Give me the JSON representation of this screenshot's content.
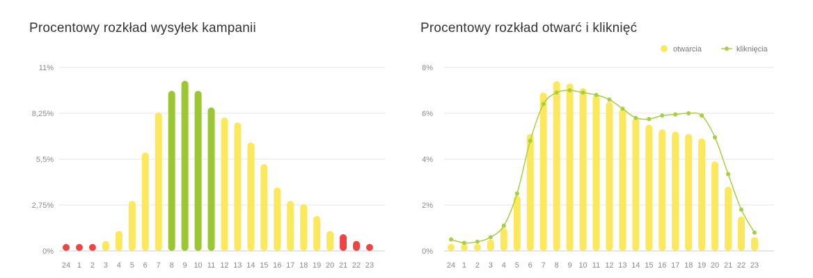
{
  "colors": {
    "yellow": "#fbe85d",
    "green": "#9bc832",
    "red": "#ee4444",
    "line": "#a5cf3c",
    "grid": "#e4e4e4",
    "axis": "#cccccc"
  },
  "chart_data": [
    {
      "type": "bar",
      "title": "Procentowy rozkład wysyłek kampanii",
      "xlabel": "",
      "ylabel": "",
      "categories": [
        "24",
        "1",
        "2",
        "3",
        "4",
        "5",
        "6",
        "7",
        "8",
        "9",
        "10",
        "11",
        "12",
        "13",
        "14",
        "15",
        "16",
        "17",
        "18",
        "19",
        "20",
        "21",
        "22",
        "23"
      ],
      "values": [
        0.2,
        0.3,
        0.4,
        0.6,
        1.2,
        3.0,
        5.9,
        8.3,
        9.6,
        10.2,
        9.6,
        8.6,
        8.0,
        7.7,
        6.5,
        5.2,
        3.8,
        3.0,
        2.8,
        2.1,
        1.2,
        1.0,
        0.6,
        0.3
      ],
      "bar_colors": [
        "red",
        "red",
        "red",
        "yellow",
        "yellow",
        "yellow",
        "yellow",
        "yellow",
        "green",
        "green",
        "green",
        "green",
        "yellow",
        "yellow",
        "yellow",
        "yellow",
        "yellow",
        "yellow",
        "yellow",
        "yellow",
        "yellow",
        "red",
        "red",
        "red"
      ],
      "yticks": [
        "0%",
        "2,75%",
        "5,5%",
        "8,25%",
        "11%"
      ],
      "ylim": [
        0,
        11
      ],
      "grid": true
    },
    {
      "type": "bar",
      "title": "Procentowy rozkład otwarć i kliknięć",
      "xlabel": "",
      "ylabel": "",
      "categories": [
        "24",
        "1",
        "2",
        "3",
        "4",
        "5",
        "6",
        "7",
        "8",
        "9",
        "10",
        "11",
        "12",
        "13",
        "14",
        "15",
        "16",
        "17",
        "18",
        "19",
        "20",
        "21",
        "22",
        "23"
      ],
      "series": [
        {
          "name": "otwarcia",
          "type": "bar",
          "values": [
            0.3,
            0.2,
            0.3,
            0.5,
            1.0,
            2.4,
            5.1,
            6.9,
            7.4,
            7.3,
            7.1,
            6.8,
            6.5,
            6.2,
            5.8,
            5.5,
            5.3,
            5.2,
            5.1,
            4.9,
            3.9,
            2.8,
            1.5,
            0.6
          ]
        },
        {
          "name": "kliknięcia",
          "type": "line",
          "values": [
            0.5,
            0.35,
            0.4,
            0.6,
            1.1,
            2.5,
            4.8,
            6.4,
            6.9,
            7.0,
            6.9,
            6.8,
            6.6,
            6.2,
            5.8,
            5.75,
            5.9,
            5.95,
            6.0,
            5.9,
            4.95,
            3.35,
            1.8,
            0.8
          ]
        }
      ],
      "yticks": [
        "0%",
        "2%",
        "4%",
        "6%",
        "8%"
      ],
      "ylim": [
        0,
        8
      ],
      "legend": "top-right",
      "grid": true
    }
  ]
}
